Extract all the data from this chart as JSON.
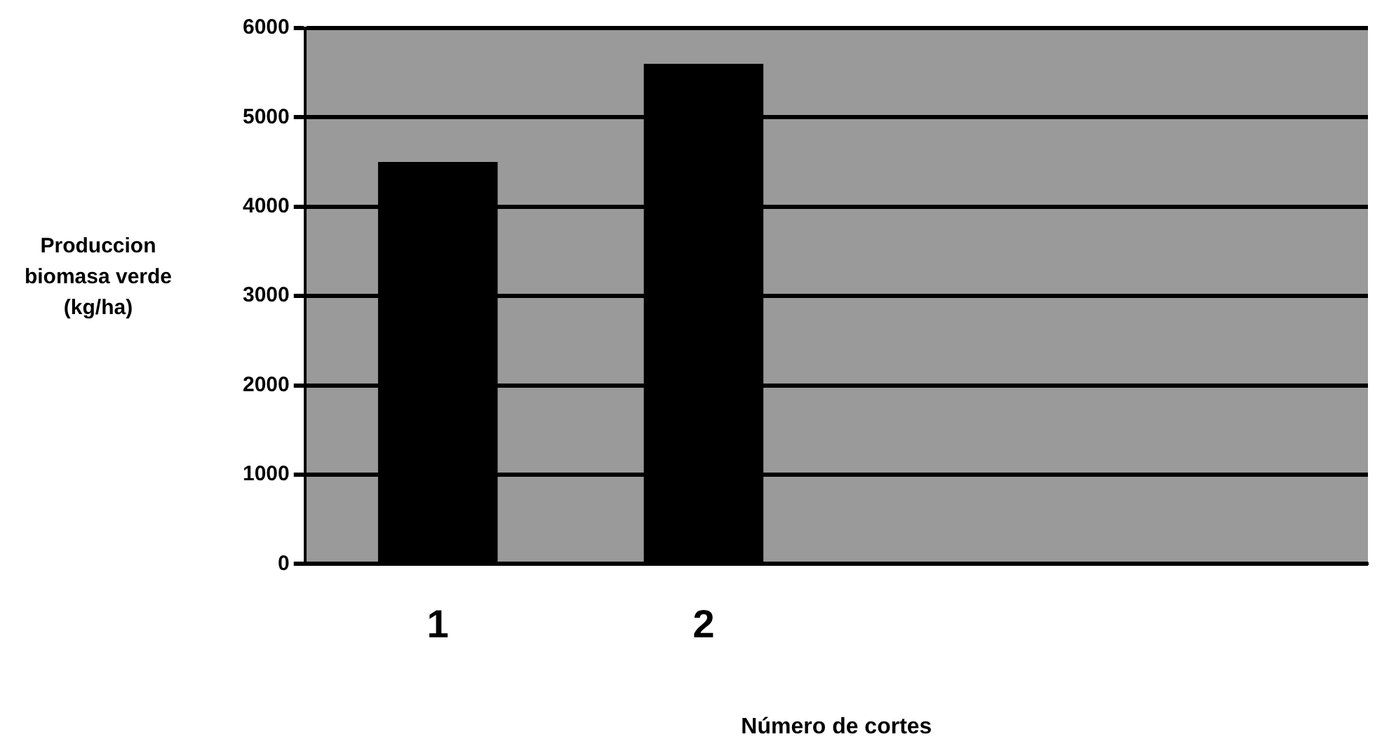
{
  "chart_data": {
    "type": "bar",
    "xlabel": "Número de cortes",
    "ylabel": "Produccion biomasa verde (kg/ha)",
    "categories": [
      "1",
      "2",
      null,
      null
    ],
    "values": [
      4500,
      5600,
      null,
      null
    ],
    "color": "#000000",
    "ylim": [
      0,
      6000
    ],
    "yticks": [
      0,
      1000,
      2000,
      3000,
      4000,
      5000,
      6000
    ],
    "grid": "y",
    "legend": false
  }
}
